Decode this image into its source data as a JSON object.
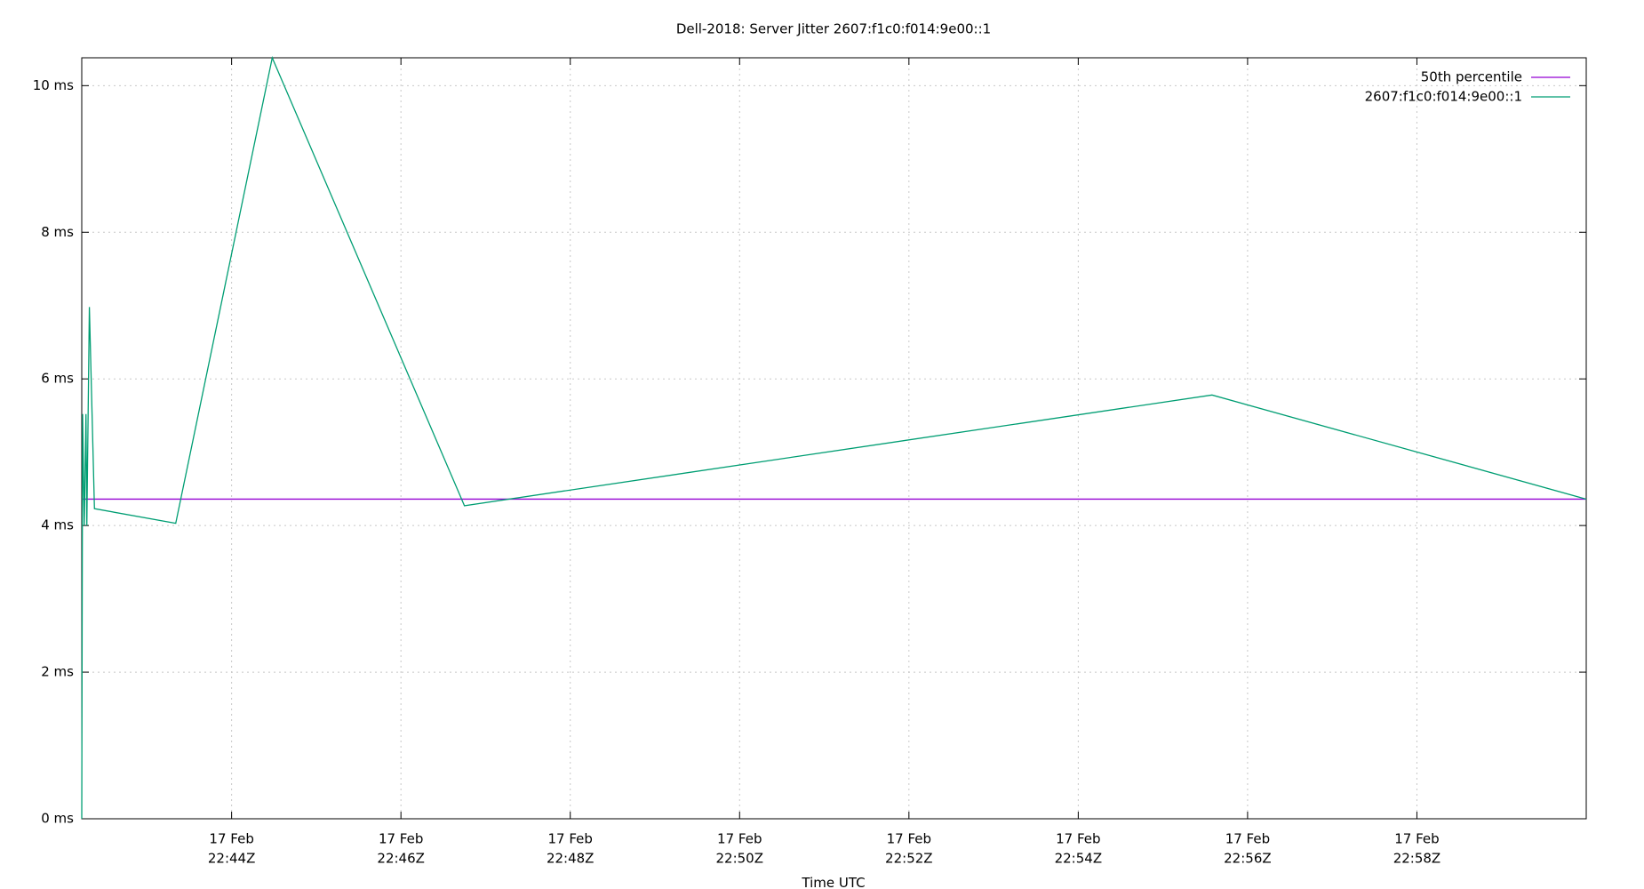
{
  "chart_data": {
    "type": "line",
    "title": "Dell-2018: Server Jitter 2607:f1c0:f014:9e00::1",
    "x_label": "Time UTC",
    "xlim": [
      1362.23,
      1380.0
    ],
    "xticks": [
      {
        "value": 1364,
        "label": [
          "17 Feb",
          "22:44Z"
        ]
      },
      {
        "value": 1366,
        "label": [
          "17 Feb",
          "22:46Z"
        ]
      },
      {
        "value": 1368,
        "label": [
          "17 Feb",
          "22:48Z"
        ]
      },
      {
        "value": 1370,
        "label": [
          "17 Feb",
          "22:50Z"
        ]
      },
      {
        "value": 1372,
        "label": [
          "17 Feb",
          "22:52Z"
        ]
      },
      {
        "value": 1374,
        "label": [
          "17 Feb",
          "22:54Z"
        ]
      },
      {
        "value": 1376,
        "label": [
          "17 Feb",
          "22:56Z"
        ]
      },
      {
        "value": 1378,
        "label": [
          "17 Feb",
          "22:58Z"
        ]
      }
    ],
    "ylim": [
      0,
      10.38
    ],
    "yticks": [
      {
        "value": 0,
        "label": "0 ms"
      },
      {
        "value": 2,
        "label": "2 ms"
      },
      {
        "value": 4,
        "label": "4 ms"
      },
      {
        "value": 6,
        "label": "6 ms"
      },
      {
        "value": 8,
        "label": "8 ms"
      },
      {
        "value": 10,
        "label": "10 ms"
      }
    ],
    "grid": true,
    "legend": "top-right",
    "series": [
      {
        "name": "50th percentile",
        "color": "#9400d3",
        "x": [
          1362.23,
          1380.0
        ],
        "values": [
          4.36,
          4.36
        ]
      },
      {
        "name": "2607:f1c0:f014:9e00::1",
        "color": "#009e73",
        "x": [
          1362.23,
          1362.24,
          1362.26,
          1362.28,
          1362.29,
          1362.32,
          1362.38,
          1363.34,
          1364.48,
          1366.75,
          1375.58,
          1380.0
        ],
        "values": [
          0,
          5.52,
          4.0,
          5.52,
          4.0,
          6.98,
          4.23,
          4.03,
          10.38,
          4.27,
          5.78,
          4.36
        ]
      }
    ]
  }
}
